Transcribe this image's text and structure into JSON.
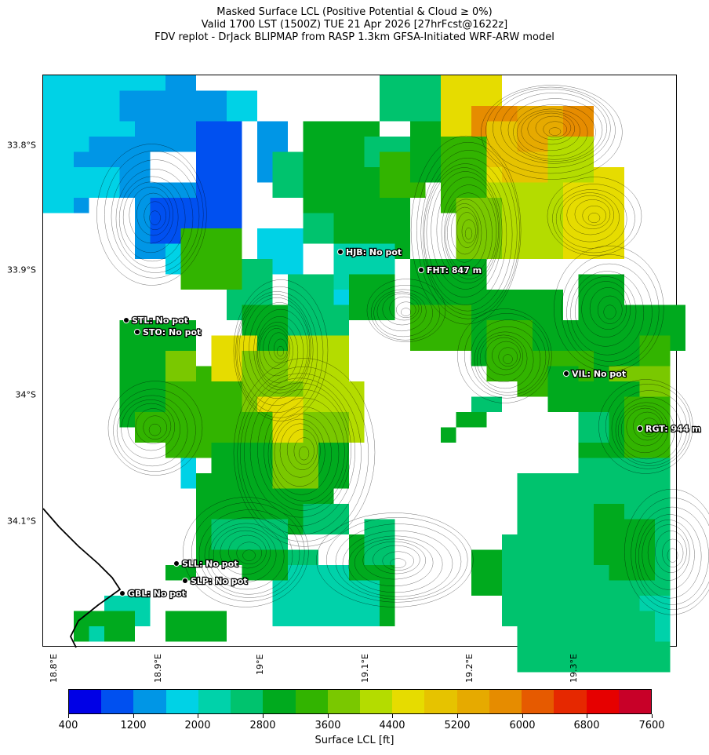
{
  "title": {
    "line1": "Masked Surface LCL (Positive Potential & Cloud ≥ 0%)",
    "line2": "Valid 1700 LST (1500Z) TUE 21 Apr 2026 [27hrFcst@1622z]",
    "line3": "FDV replot - DrJack BLIPMAP from RASP 1.3km GFSA-Initiated WRF-ARW model"
  },
  "axes": {
    "lat_labels": [
      "33.8°S",
      "33.9°S",
      "34°S",
      "34.1°S"
    ],
    "lon_labels": [
      "18.8°E",
      "18.9°E",
      "19°E",
      "19.1°E",
      "19.2°E",
      "19.3°E"
    ]
  },
  "stations": [
    {
      "label": "HJB: No pot"
    },
    {
      "label": "FHT: 847 m"
    },
    {
      "label": "STL: No pot"
    },
    {
      "label": "STO: No pot"
    },
    {
      "label": "VIL: No pot"
    },
    {
      "label": "RGT: 944 m"
    },
    {
      "label": "SLL: No pot"
    },
    {
      "label": "SLP: No pot"
    },
    {
      "label": "GBL: No pot"
    }
  ],
  "colorbar": {
    "label": "Surface LCL [ft]",
    "ticks": [
      "400",
      "1200",
      "2000",
      "2800",
      "3600",
      "4400",
      "5200",
      "6000",
      "6800",
      "7600"
    ],
    "colors": [
      "#0000e6",
      "#0050f0",
      "#0096e6",
      "#00d2e6",
      "#00d2aa",
      "#00c36e",
      "#00aa1e",
      "#32b400",
      "#7ac800",
      "#b4dc00",
      "#e6dc00",
      "#e6c300",
      "#e6aa00",
      "#e68c00",
      "#e65a00",
      "#e62800",
      "#e60000",
      "#c80028"
    ]
  }
}
